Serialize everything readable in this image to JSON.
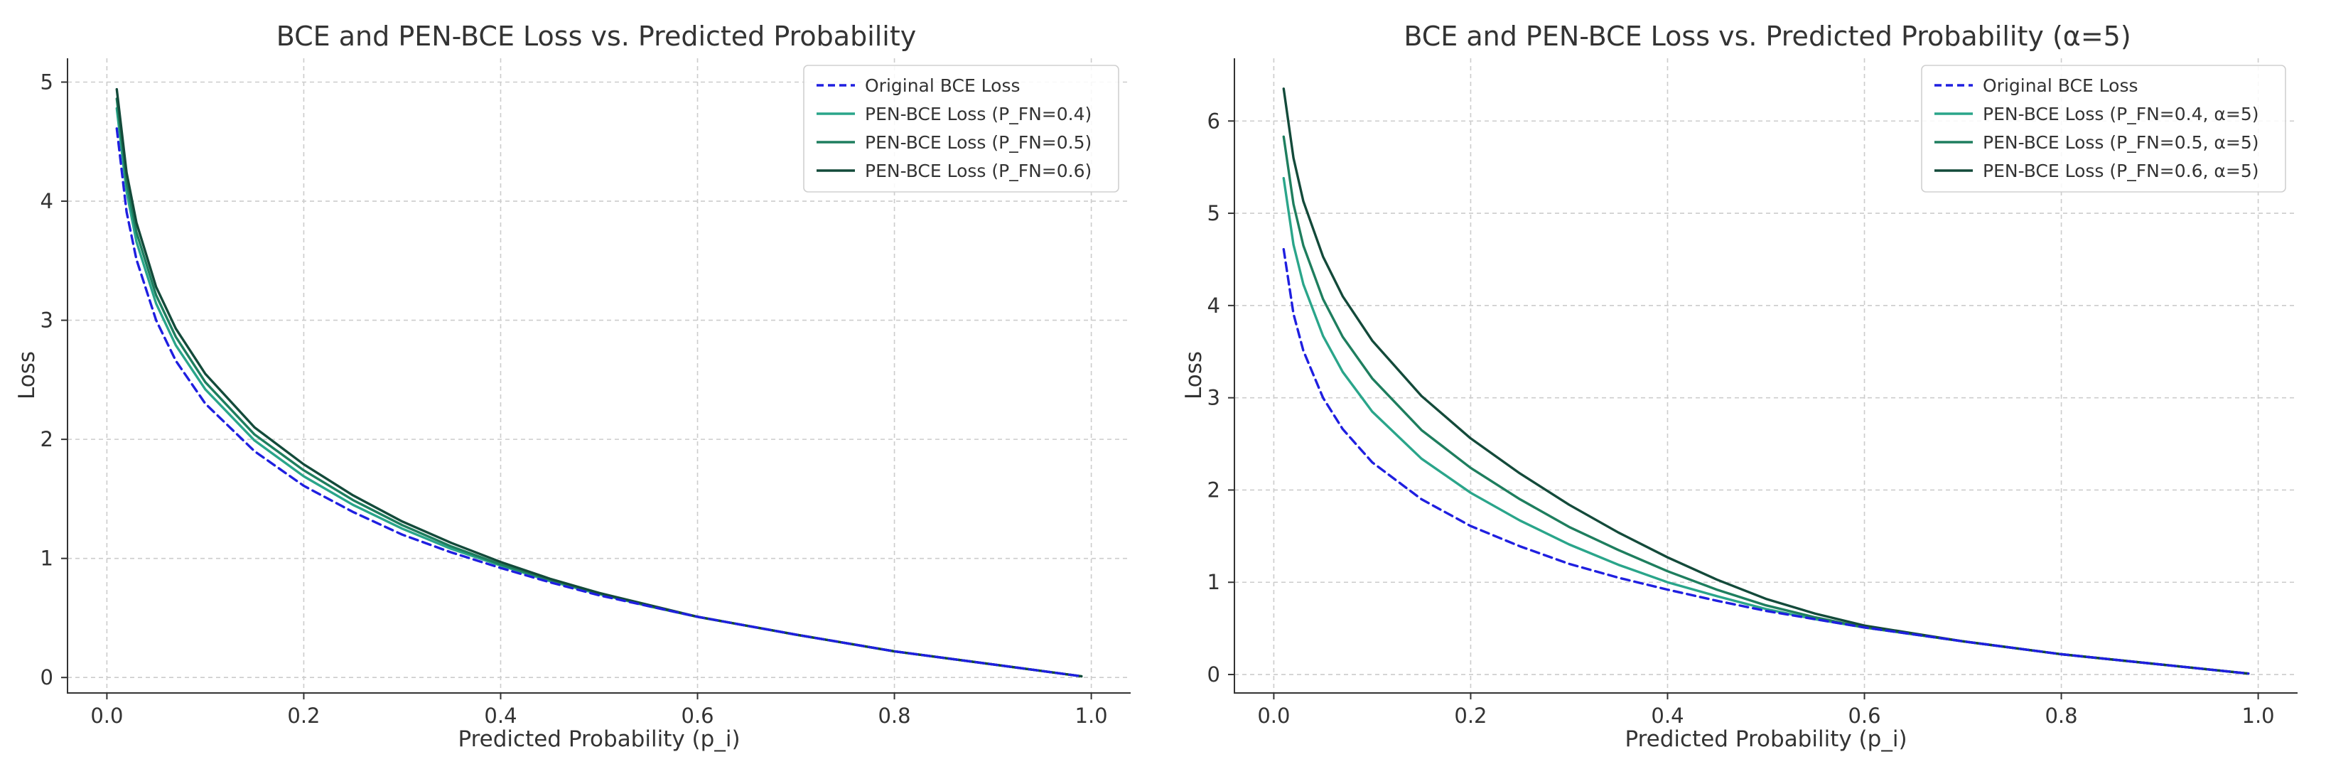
{
  "chart_data": [
    {
      "type": "line",
      "title": "BCE and PEN-BCE Loss vs. Predicted Probability",
      "xlabel": "Predicted Probability (p_i)",
      "ylabel": "Loss",
      "xlim": [
        -0.04,
        1.04
      ],
      "ylim": [
        -0.13,
        5.2
      ],
      "xticks": [
        0.0,
        0.2,
        0.4,
        0.6,
        0.8,
        1.0
      ],
      "xtick_labels": [
        "0.0",
        "0.2",
        "0.4",
        "0.6",
        "0.8",
        "1.0"
      ],
      "yticks": [
        0,
        1,
        2,
        3,
        4,
        5
      ],
      "ytick_labels": [
        "0",
        "1",
        "2",
        "3",
        "4",
        "5"
      ],
      "grid": true,
      "legend_position": "top-right",
      "x": [
        0.01,
        0.02,
        0.03,
        0.05,
        0.07,
        0.1,
        0.15,
        0.2,
        0.25,
        0.3,
        0.35,
        0.4,
        0.45,
        0.5,
        0.55,
        0.6,
        0.7,
        0.8,
        0.9,
        0.99
      ],
      "series": [
        {
          "name": "Original BCE Loss",
          "color": "#1f1fe0",
          "dash": true,
          "values": [
            4.61,
            3.91,
            3.51,
            3.0,
            2.66,
            2.3,
            1.9,
            1.61,
            1.39,
            1.2,
            1.05,
            0.92,
            0.8,
            0.69,
            0.6,
            0.51,
            0.36,
            0.22,
            0.11,
            0.01
          ]
        },
        {
          "name": "PEN-BCE Loss (P_FN=0.4)",
          "color": "#2aa58a",
          "dash": false,
          "values": [
            4.78,
            4.08,
            3.66,
            3.14,
            2.79,
            2.42,
            1.99,
            1.69,
            1.45,
            1.25,
            1.08,
            0.94,
            0.81,
            0.7,
            0.6,
            0.51,
            0.36,
            0.22,
            0.11,
            0.01
          ]
        },
        {
          "name": "PEN-BCE Loss (P_FN=0.5)",
          "color": "#1e7e5e",
          "dash": false,
          "values": [
            4.86,
            4.16,
            3.74,
            3.21,
            2.86,
            2.48,
            2.04,
            1.74,
            1.49,
            1.28,
            1.1,
            0.95,
            0.82,
            0.71,
            0.6,
            0.51,
            0.36,
            0.22,
            0.11,
            0.01
          ]
        },
        {
          "name": "PEN-BCE Loss (P_FN=0.6)",
          "color": "#134a3a",
          "dash": false,
          "values": [
            4.94,
            4.24,
            3.82,
            3.28,
            2.93,
            2.55,
            2.1,
            1.79,
            1.53,
            1.31,
            1.13,
            0.97,
            0.83,
            0.71,
            0.61,
            0.51,
            0.36,
            0.22,
            0.11,
            0.01
          ]
        }
      ]
    },
    {
      "type": "line",
      "title": "BCE and PEN-BCE Loss vs. Predicted Probability (α=5)",
      "xlabel": "Predicted Probability (p_i)",
      "ylabel": "Loss",
      "xlim": [
        -0.04,
        1.04
      ],
      "ylim": [
        -0.2,
        6.68
      ],
      "xticks": [
        0.0,
        0.2,
        0.4,
        0.6,
        0.8,
        1.0
      ],
      "xtick_labels": [
        "0.0",
        "0.2",
        "0.4",
        "0.6",
        "0.8",
        "1.0"
      ],
      "yticks": [
        0,
        1,
        2,
        3,
        4,
        5,
        6
      ],
      "ytick_labels": [
        "0",
        "1",
        "2",
        "3",
        "4",
        "5",
        "6"
      ],
      "grid": true,
      "legend_position": "top-right",
      "x": [
        0.01,
        0.02,
        0.03,
        0.05,
        0.07,
        0.1,
        0.15,
        0.2,
        0.25,
        0.3,
        0.35,
        0.4,
        0.45,
        0.5,
        0.55,
        0.6,
        0.7,
        0.8,
        0.9,
        0.99
      ],
      "series": [
        {
          "name": "Original BCE Loss",
          "color": "#1f1fe0",
          "dash": true,
          "values": [
            4.61,
            3.91,
            3.51,
            3.0,
            2.66,
            2.3,
            1.9,
            1.61,
            1.39,
            1.2,
            1.05,
            0.92,
            0.8,
            0.69,
            0.6,
            0.51,
            0.36,
            0.22,
            0.11,
            0.01
          ]
        },
        {
          "name": "PEN-BCE Loss (P_FN=0.4, α=5)",
          "color": "#2aa58a",
          "dash": false,
          "values": [
            5.38,
            4.66,
            4.23,
            3.67,
            3.28,
            2.85,
            2.34,
            1.97,
            1.67,
            1.41,
            1.19,
            1.0,
            0.85,
            0.71,
            0.6,
            0.51,
            0.36,
            0.22,
            0.11,
            0.01
          ]
        },
        {
          "name": "PEN-BCE Loss (P_FN=0.5, α=5)",
          "color": "#1e7e5e",
          "dash": false,
          "values": [
            5.83,
            5.1,
            4.65,
            4.07,
            3.66,
            3.21,
            2.65,
            2.24,
            1.9,
            1.6,
            1.35,
            1.12,
            0.92,
            0.75,
            0.62,
            0.51,
            0.36,
            0.22,
            0.11,
            0.01
          ]
        },
        {
          "name": "PEN-BCE Loss (P_FN=0.6, α=5)",
          "color": "#134a3a",
          "dash": false,
          "values": [
            6.35,
            5.6,
            5.13,
            4.53,
            4.1,
            3.62,
            3.02,
            2.56,
            2.18,
            1.84,
            1.54,
            1.27,
            1.03,
            0.82,
            0.66,
            0.53,
            0.36,
            0.22,
            0.11,
            0.01
          ]
        }
      ]
    }
  ]
}
